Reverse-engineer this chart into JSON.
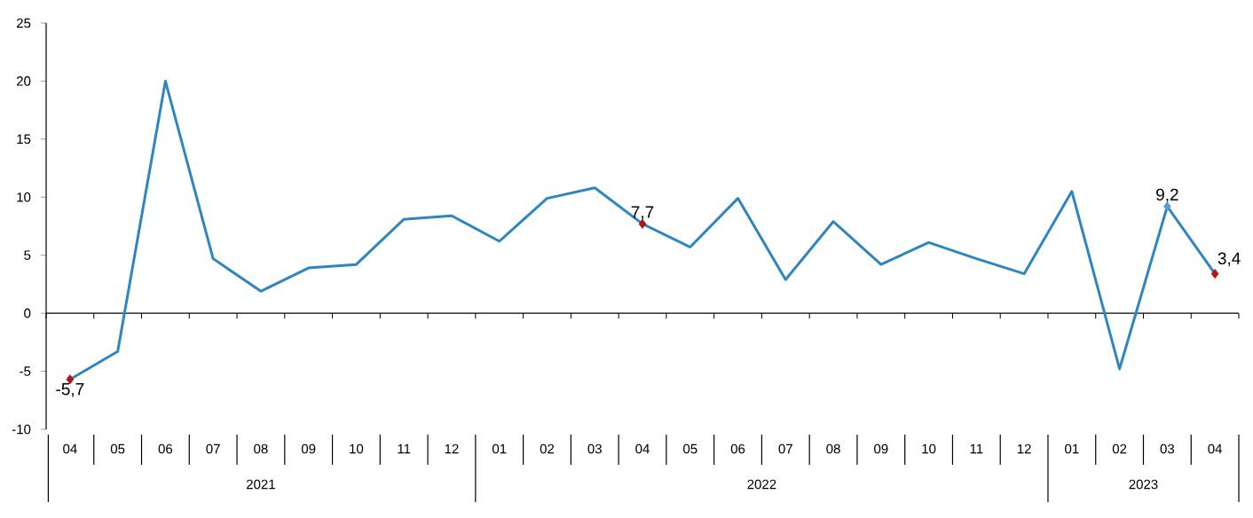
{
  "chart_data": {
    "type": "line",
    "categories": [
      "04",
      "05",
      "06",
      "07",
      "08",
      "09",
      "10",
      "11",
      "12",
      "01",
      "02",
      "03",
      "04",
      "05",
      "06",
      "07",
      "08",
      "09",
      "10",
      "11",
      "12",
      "01",
      "02",
      "03",
      "04"
    ],
    "annotations": [
      "2021",
      "2022",
      "2023"
    ],
    "series": [
      {
        "color": "#2e86c1",
        "values": [
          -5.7,
          -3.3,
          20.0,
          4.7,
          1.9,
          3.9,
          4.2,
          8.1,
          8.4,
          6.2,
          9.9,
          10.8,
          7.7,
          5.7,
          9.9,
          2.9,
          7.9,
          4.2,
          6.1,
          4.7,
          3.4,
          10.5,
          -4.8,
          9.2,
          3.4
        ],
        "value_labels": [
          "-5,7",
          null,
          null,
          null,
          null,
          null,
          null,
          null,
          null,
          null,
          null,
          null,
          "7,7",
          null,
          null,
          null,
          null,
          null,
          null,
          null,
          null,
          null,
          null,
          "9,2",
          "3,4"
        ],
        "colors": [
          "#b01818",
          null,
          null,
          null,
          null,
          null,
          null,
          null,
          null,
          null,
          null,
          null,
          "#b01818",
          null,
          null,
          null,
          null,
          null,
          null,
          null,
          null,
          null,
          null,
          "#5b9bd5",
          "#b01818"
        ]
      }
    ],
    "ylim": [
      -10,
      25
    ],
    "yticks": [
      -10,
      -5,
      0,
      5,
      10,
      15,
      20,
      25
    ],
    "line_style": "solid"
  }
}
